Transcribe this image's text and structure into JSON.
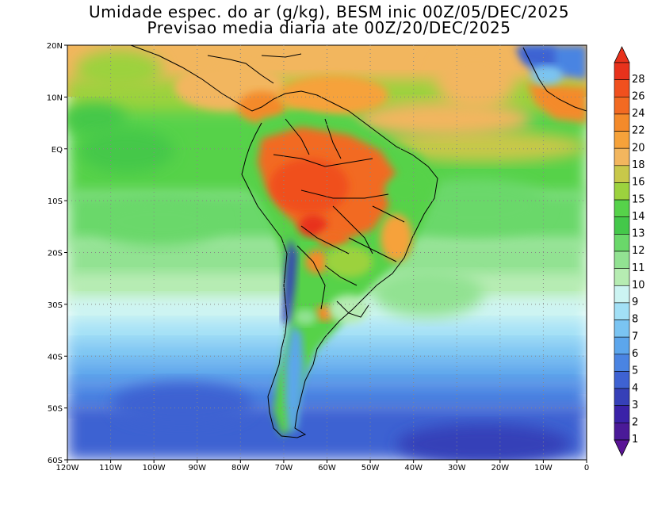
{
  "title": {
    "line1": "Umidade espec. do ar (g/kg), BESM inic 00Z/05/DEC/2025",
    "line2": "Previsao media diaria ate 00Z/20/DEC/2025"
  },
  "map": {
    "lat_labels": [
      "20N",
      "10N",
      "EQ",
      "10S",
      "20S",
      "30S",
      "40S",
      "50S",
      "60S"
    ],
    "lon_labels": [
      "120W",
      "110W",
      "100W",
      "90W",
      "80W",
      "70W",
      "60W",
      "50W",
      "40W",
      "30W",
      "20W",
      "10W",
      "0"
    ],
    "lat_range": [
      -60,
      20
    ],
    "lon_range": [
      -120,
      0
    ]
  },
  "colorbar": {
    "levels": [
      "28",
      "26",
      "24",
      "22",
      "20",
      "18",
      "16",
      "15",
      "14",
      "13",
      "12",
      "11",
      "10",
      "9",
      "8",
      "7",
      "6",
      "5",
      "4",
      "3",
      "2",
      "1"
    ],
    "colors": [
      "#e8321c",
      "#f0501e",
      "#f26a22",
      "#f48a2a",
      "#f6a23a",
      "#f2b65e",
      "#c8c84a",
      "#9cd23e",
      "#56d24a",
      "#44c84a",
      "#6ad86a",
      "#92e292",
      "#b6ecb2",
      "#ccf4f2",
      "#a2e0f6",
      "#7ac4f2",
      "#5ca6ec",
      "#4a84e2",
      "#3e62d2",
      "#3640b8",
      "#3a22a8",
      "#4a1a98"
    ],
    "top_arrow_color": "#e8321c",
    "bottom_arrow_color": "#5a1496"
  }
}
